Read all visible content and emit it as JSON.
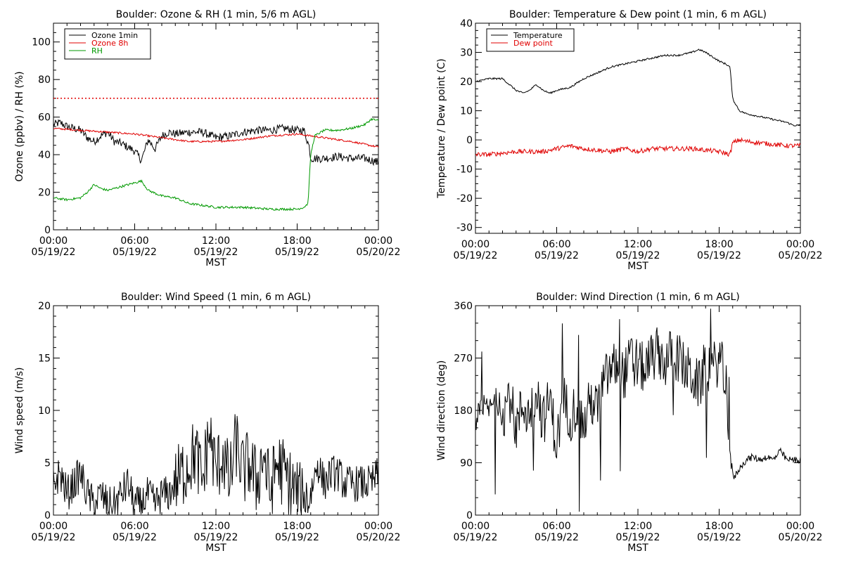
{
  "chart_data": [
    {
      "type": "line",
      "title": "Boulder: Ozone & RH (1 min, 5/6 m AGL)",
      "xlabel": "MST",
      "ylabel": "Ozone (ppbv) / RH (%)",
      "x_range": [
        "05/19/22 00:00",
        "05/20/22 00:00"
      ],
      "x_ticks": [
        "00:00",
        "06:00",
        "12:00",
        "18:00",
        "00:00"
      ],
      "x_tick_dates": [
        "05/19/22",
        "05/19/22",
        "05/19/22",
        "05/19/22",
        "05/20/22"
      ],
      "ylim": [
        0,
        110
      ],
      "y_ticks": [
        0,
        20,
        40,
        60,
        80,
        100
      ],
      "grid": false,
      "legend_position": "top-left",
      "reference_line": {
        "y": 70,
        "color": "#e00000",
        "style": "dotted"
      },
      "series": [
        {
          "name": "Ozone 1min",
          "color": "#000000",
          "x": [
            0,
            0.5,
            1,
            1.5,
            2,
            2.5,
            3,
            3.5,
            4,
            4.5,
            5,
            5.5,
            6,
            6.5,
            7,
            7.5,
            8,
            8.5,
            9,
            10,
            11,
            12,
            13,
            14,
            15,
            16,
            17,
            18,
            18.5,
            18.9,
            19,
            19.3,
            20,
            21,
            22,
            23,
            23.5,
            24
          ],
          "values": [
            56,
            57,
            55,
            54,
            53,
            49,
            47,
            50,
            52,
            47,
            46,
            44,
            42,
            37,
            48,
            43,
            50,
            52,
            51,
            52,
            52,
            49,
            50,
            52,
            53,
            53,
            54,
            53,
            53,
            44,
            38,
            38,
            38,
            39,
            38,
            38,
            37,
            36
          ]
        },
        {
          "name": "Ozone 8h",
          "color": "#e00000",
          "x": [
            0,
            2,
            4,
            6,
            8,
            10,
            12,
            14,
            16,
            18,
            20,
            22,
            24
          ],
          "values": [
            54,
            53,
            52,
            51,
            49,
            47,
            47,
            48,
            50,
            51,
            49,
            47,
            44
          ]
        },
        {
          "name": "RH",
          "color": "#009900",
          "x": [
            0,
            1,
            2,
            2.5,
            3,
            3.5,
            4,
            5,
            6,
            6.5,
            7,
            8,
            9,
            10,
            12,
            14,
            16,
            18,
            18.5,
            18.8,
            19,
            19.3,
            20,
            21,
            22,
            23,
            23.5,
            24
          ],
          "values": [
            17,
            16,
            17,
            20,
            24,
            22,
            21,
            23,
            25,
            26,
            21,
            18,
            17,
            14,
            12,
            12,
            11,
            11,
            12,
            14,
            40,
            50,
            53,
            53,
            54,
            56,
            59,
            58
          ]
        }
      ]
    },
    {
      "type": "line",
      "title": "Boulder: Temperature & Dew point (1 min, 6 m AGL)",
      "xlabel": "MST",
      "ylabel": "Temperature / Dew point (C)",
      "x_range": [
        "05/19/22 00:00",
        "05/20/22 00:00"
      ],
      "x_ticks": [
        "00:00",
        "06:00",
        "12:00",
        "18:00",
        "00:00"
      ],
      "x_tick_dates": [
        "05/19/22",
        "05/19/22",
        "05/19/22",
        "05/19/22",
        "05/20/22"
      ],
      "ylim": [
        -32,
        40
      ],
      "y_ticks": [
        -30,
        -20,
        -10,
        0,
        10,
        20,
        30,
        40
      ],
      "grid": false,
      "legend_position": "top-left",
      "series": [
        {
          "name": "Temperature",
          "color": "#000000",
          "x": [
            0,
            1,
            2,
            2.5,
            3,
            3.5,
            4,
            4.5,
            5,
            5.5,
            6,
            7,
            8,
            9,
            10,
            11,
            12,
            13,
            14,
            15,
            16,
            16.5,
            17,
            18,
            18.5,
            18.8,
            19,
            19.5,
            20,
            21,
            22,
            23,
            23.5,
            24
          ],
          "values": [
            20,
            21,
            21,
            19,
            17,
            16,
            17,
            19,
            17,
            16,
            17,
            18,
            21,
            23,
            25,
            26,
            27,
            28,
            29,
            29,
            30,
            31,
            30,
            27,
            26,
            25,
            14,
            10,
            9,
            8,
            7,
            6,
            5,
            5
          ]
        },
        {
          "name": "Dew point",
          "color": "#e00000",
          "x": [
            0,
            1,
            2,
            3,
            4,
            5,
            6,
            7,
            8,
            9,
            10,
            11,
            12,
            13,
            14,
            15,
            16,
            17,
            18,
            18.8,
            19,
            19.5,
            20,
            21,
            22,
            23,
            24
          ],
          "values": [
            -5,
            -5,
            -4.5,
            -4,
            -4,
            -4,
            -3,
            -2,
            -3,
            -3.5,
            -4,
            -3,
            -4,
            -3,
            -3,
            -3,
            -3,
            -3.5,
            -4,
            -5,
            -1,
            0,
            -0.5,
            -1,
            -1.5,
            -2,
            -2
          ]
        }
      ]
    },
    {
      "type": "line",
      "title": "Boulder: Wind Speed (1 min, 6 m AGL)",
      "xlabel": "MST",
      "ylabel": "Wind speed (m/s)",
      "x_range": [
        "05/19/22 00:00",
        "05/20/22 00:00"
      ],
      "x_ticks": [
        "00:00",
        "06:00",
        "12:00",
        "18:00",
        "00:00"
      ],
      "x_tick_dates": [
        "05/19/22",
        "05/19/22",
        "05/19/22",
        "05/19/22",
        "05/20/22"
      ],
      "ylim": [
        0,
        20
      ],
      "y_ticks": [
        0,
        5,
        10,
        15,
        20
      ],
      "grid": false,
      "series": [
        {
          "name": "",
          "color": "#000000",
          "x": [
            0,
            0.5,
            1,
            1.5,
            2,
            2.5,
            3,
            3.5,
            4,
            4.5,
            5,
            5.5,
            6,
            6.5,
            7,
            7.5,
            8,
            8.5,
            9,
            9.5,
            10,
            10.5,
            11,
            11.5,
            12,
            12.5,
            13,
            13.5,
            14,
            14.5,
            15,
            15.5,
            16,
            16.5,
            17,
            17.5,
            18,
            18.5,
            19,
            19.5,
            20,
            20.5,
            21,
            21.5,
            22,
            22.5,
            23,
            23.5,
            24
          ],
          "values": [
            3,
            4,
            2,
            3,
            4,
            2,
            1,
            2,
            1,
            1,
            2,
            3,
            1,
            1,
            2,
            1,
            2,
            2,
            3,
            4,
            5,
            6,
            3,
            8,
            4,
            6,
            3,
            7,
            4,
            5,
            3,
            6,
            2,
            5,
            4,
            3,
            2,
            1,
            2,
            5,
            3,
            4,
            4,
            3,
            3,
            3,
            3,
            3,
            4
          ]
        }
      ]
    },
    {
      "type": "line",
      "title": "Boulder: Wind Direction (1 min, 6 m AGL)",
      "xlabel": "MST",
      "ylabel": "Wind direction (deg)",
      "x_range": [
        "05/19/22 00:00",
        "05/20/22 00:00"
      ],
      "x_ticks": [
        "00:00",
        "06:00",
        "12:00",
        "18:00",
        "00:00"
      ],
      "x_tick_dates": [
        "05/19/22",
        "05/19/22",
        "05/19/22",
        "05/19/22",
        "05/20/22"
      ],
      "ylim": [
        0,
        360
      ],
      "y_ticks": [
        0,
        90,
        180,
        270,
        360
      ],
      "grid": false,
      "series": [
        {
          "name": "",
          "color": "#000000",
          "x": [
            0,
            0.5,
            1,
            1.5,
            2,
            2.5,
            3,
            3.5,
            4,
            4.5,
            5,
            5.5,
            6,
            6.5,
            7,
            7.5,
            8,
            8.5,
            9,
            9.5,
            10,
            10.5,
            11,
            11.5,
            12,
            12.5,
            13,
            13.5,
            14,
            14.5,
            15,
            15.5,
            16,
            16.5,
            17,
            17.5,
            18,
            18.5,
            19,
            19.5,
            20,
            20.5,
            21,
            21.5,
            22,
            22.5,
            23,
            23.5,
            24
          ],
          "values": [
            160,
            190,
            180,
            200,
            170,
            210,
            150,
            190,
            170,
            220,
            160,
            200,
            120,
            200,
            170,
            190,
            150,
            200,
            180,
            230,
            250,
            260,
            240,
            270,
            260,
            250,
            270,
            280,
            260,
            280,
            270,
            250,
            240,
            220,
            260,
            250,
            270,
            230,
            60,
            80,
            95,
            100,
            95,
            100,
            95,
            110,
            95,
            95,
            95
          ]
        }
      ]
    }
  ]
}
